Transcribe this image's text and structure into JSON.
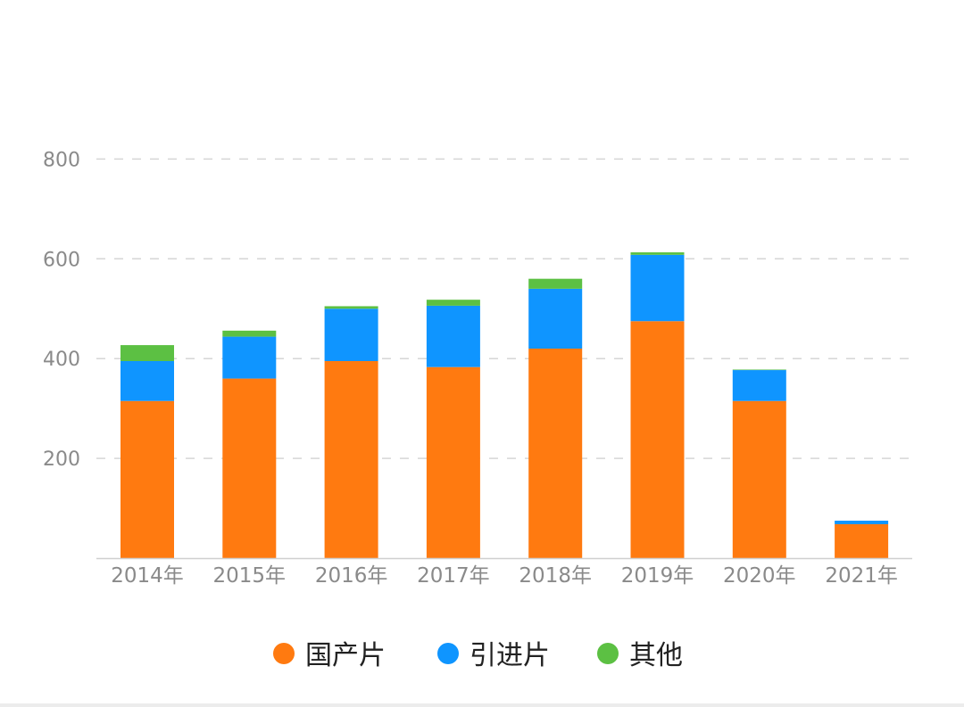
{
  "chart_data": {
    "type": "bar",
    "stacked": true,
    "categories": [
      "2014年",
      "2015年",
      "2016年",
      "2017年",
      "2018年",
      "2019年",
      "2020年",
      "2021年"
    ],
    "series": [
      {
        "name": "国产片",
        "color": "#ff7a10",
        "values": [
          315,
          360,
          395,
          383,
          420,
          475,
          315,
          68
        ]
      },
      {
        "name": "引进片",
        "color": "#0f95ff",
        "values": [
          80,
          84,
          105,
          123,
          120,
          133,
          62,
          7
        ]
      },
      {
        "name": "其他",
        "color": "#5cc043",
        "values": [
          32,
          12,
          5,
          12,
          20,
          5,
          1,
          0
        ]
      }
    ],
    "yticks": [
      200,
      400,
      600,
      800
    ],
    "ylim": [
      0,
      800
    ],
    "grid": true,
    "legend": "bottom-center"
  }
}
